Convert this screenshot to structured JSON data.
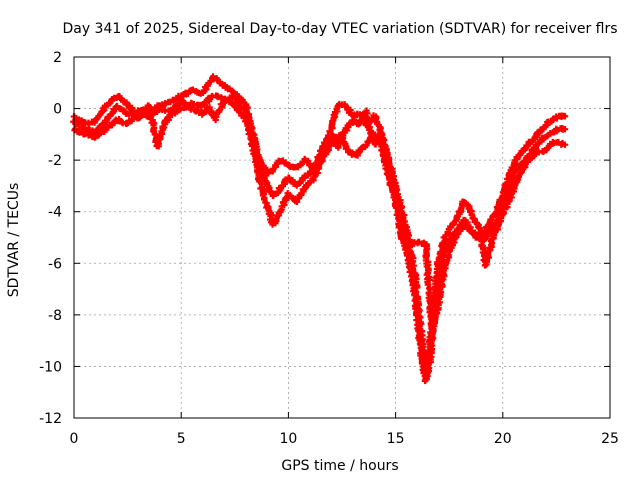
{
  "chart_data": {
    "type": "scatter",
    "title": "Day 341 of 2025, Sidereal Day-to-day VTEC variation (SDTVAR) for receiver flrs",
    "xlabel": "GPS time / hours",
    "ylabel": "SDTVAR / TECUs",
    "xlim": [
      0,
      25
    ],
    "ylim": [
      -12,
      2
    ],
    "xticks": [
      "0",
      "5",
      "10",
      "15",
      "20",
      "25"
    ],
    "yticks": [
      "2",
      "0",
      "-2",
      "-4",
      "-6",
      "-8",
      "-10",
      "-12"
    ],
    "grid": true,
    "marker": "plus",
    "marker_color": "#ff0000",
    "series": [
      {
        "points": [
          [
            0.0,
            -0.3
          ],
          [
            0.5,
            -0.6
          ],
          [
            1.0,
            -0.5
          ],
          [
            1.5,
            0.1
          ],
          [
            2.0,
            0.5
          ],
          [
            2.5,
            0.2
          ],
          [
            3.0,
            -0.4
          ],
          [
            3.5,
            -0.1
          ],
          [
            4.0,
            0.1
          ],
          [
            4.5,
            0.3
          ],
          [
            5.0,
            0.5
          ],
          [
            5.5,
            0.7
          ],
          [
            6.0,
            0.6
          ],
          [
            6.5,
            1.2
          ],
          [
            7.0,
            0.9
          ],
          [
            7.5,
            0.6
          ],
          [
            8.0,
            0.2
          ],
          [
            8.3,
            -0.8
          ],
          [
            8.6,
            -1.8
          ],
          [
            9.0,
            -2.5
          ],
          [
            9.3,
            -2.4
          ],
          [
            9.6,
            -2.0
          ],
          [
            10.0,
            -2.2
          ],
          [
            10.4,
            -2.3
          ],
          [
            10.8,
            -2.0
          ],
          [
            11.2,
            -2.3
          ],
          [
            11.6,
            -1.5
          ],
          [
            12.0,
            -0.8
          ],
          [
            12.3,
            0.1
          ],
          [
            12.6,
            0.2
          ],
          [
            13.0,
            -0.3
          ],
          [
            13.3,
            -0.2
          ],
          [
            13.7,
            -0.7
          ],
          [
            14.0,
            -0.3
          ],
          [
            14.3,
            -0.8
          ],
          [
            14.6,
            -1.8
          ],
          [
            15.0,
            -3.0
          ],
          [
            15.3,
            -4.0
          ],
          [
            15.6,
            -5.0
          ],
          [
            15.9,
            -6.5
          ],
          [
            16.2,
            -8.8
          ],
          [
            16.4,
            -10.2
          ],
          [
            16.6,
            -9.2
          ],
          [
            16.8,
            -7.5
          ],
          [
            17.0,
            -6.0
          ],
          [
            17.3,
            -5.0
          ],
          [
            17.6,
            -4.6
          ],
          [
            17.9,
            -4.2
          ],
          [
            18.2,
            -3.6
          ],
          [
            18.5,
            -4.0
          ],
          [
            18.8,
            -4.5
          ],
          [
            19.1,
            -4.9
          ],
          [
            19.4,
            -4.4
          ],
          [
            19.7,
            -4.0
          ],
          [
            20.0,
            -3.3
          ],
          [
            20.3,
            -2.6
          ],
          [
            20.6,
            -2.0
          ],
          [
            21.0,
            -1.6
          ],
          [
            21.4,
            -1.2
          ],
          [
            21.8,
            -0.8
          ],
          [
            22.2,
            -0.5
          ],
          [
            22.6,
            -0.3
          ],
          [
            22.9,
            -0.3
          ]
        ]
      },
      {
        "points": [
          [
            0.0,
            -0.8
          ],
          [
            0.5,
            -1.0
          ],
          [
            1.0,
            -1.1
          ],
          [
            1.5,
            -0.8
          ],
          [
            2.0,
            -0.4
          ],
          [
            2.5,
            -0.6
          ],
          [
            3.0,
            -0.2
          ],
          [
            3.5,
            0.1
          ],
          [
            3.9,
            -1.5
          ],
          [
            4.2,
            -0.6
          ],
          [
            4.6,
            -0.2
          ],
          [
            5.0,
            0.0
          ],
          [
            5.5,
            0.2
          ],
          [
            6.0,
            0.1
          ],
          [
            6.5,
            0.5
          ],
          [
            7.0,
            0.4
          ],
          [
            7.5,
            0.1
          ],
          [
            8.0,
            -0.4
          ],
          [
            8.3,
            -1.3
          ],
          [
            8.6,
            -2.6
          ],
          [
            9.0,
            -3.8
          ],
          [
            9.3,
            -4.5
          ],
          [
            9.6,
            -4.0
          ],
          [
            10.0,
            -3.3
          ],
          [
            10.4,
            -3.6
          ],
          [
            10.8,
            -3.0
          ],
          [
            11.2,
            -2.7
          ],
          [
            11.6,
            -1.9
          ],
          [
            12.0,
            -1.4
          ],
          [
            12.4,
            -1.0
          ],
          [
            12.8,
            -1.7
          ],
          [
            13.2,
            -1.8
          ],
          [
            13.6,
            -1.4
          ],
          [
            14.0,
            -1.0
          ],
          [
            14.3,
            -1.3
          ],
          [
            14.6,
            -2.4
          ],
          [
            15.0,
            -3.6
          ],
          [
            15.3,
            -5.0
          ],
          [
            15.6,
            -5.8
          ],
          [
            15.9,
            -7.2
          ],
          [
            16.2,
            -9.5
          ],
          [
            16.4,
            -10.6
          ],
          [
            16.6,
            -9.8
          ],
          [
            16.8,
            -8.2
          ],
          [
            17.0,
            -6.8
          ],
          [
            17.3,
            -5.6
          ],
          [
            17.6,
            -5.0
          ],
          [
            17.9,
            -4.7
          ],
          [
            18.2,
            -4.3
          ],
          [
            18.5,
            -4.7
          ],
          [
            18.8,
            -5.0
          ],
          [
            19.1,
            -5.1
          ],
          [
            19.4,
            -4.8
          ],
          [
            19.7,
            -4.4
          ],
          [
            20.0,
            -3.8
          ],
          [
            20.3,
            -3.1
          ],
          [
            20.6,
            -2.4
          ],
          [
            21.0,
            -2.0
          ],
          [
            21.4,
            -1.6
          ],
          [
            21.8,
            -1.2
          ],
          [
            22.2,
            -1.0
          ],
          [
            22.6,
            -0.8
          ],
          [
            22.9,
            -0.8
          ]
        ]
      },
      {
        "points": [
          [
            0.0,
            -0.5
          ],
          [
            0.5,
            -0.8
          ],
          [
            1.0,
            -0.9
          ],
          [
            1.5,
            -0.5
          ],
          [
            2.0,
            0.1
          ],
          [
            2.5,
            -0.2
          ],
          [
            3.0,
            -0.1
          ],
          [
            3.5,
            -0.3
          ],
          [
            4.0,
            0.0
          ],
          [
            4.5,
            -0.1
          ],
          [
            5.0,
            0.3
          ],
          [
            5.5,
            0.0
          ],
          [
            6.0,
            -0.2
          ],
          [
            6.3,
            0.0
          ],
          [
            6.6,
            -0.4
          ],
          [
            7.0,
            0.3
          ],
          [
            7.5,
            0.5
          ],
          [
            8.0,
            -0.1
          ],
          [
            8.3,
            -1.0
          ],
          [
            8.6,
            -2.1
          ],
          [
            9.0,
            -3.0
          ],
          [
            9.3,
            -3.4
          ],
          [
            9.6,
            -3.1
          ],
          [
            10.0,
            -2.7
          ],
          [
            10.4,
            -3.0
          ],
          [
            10.8,
            -2.6
          ],
          [
            11.2,
            -2.4
          ],
          [
            11.6,
            -1.6
          ],
          [
            12.0,
            -1.0
          ],
          [
            12.3,
            -1.5
          ],
          [
            12.6,
            -0.9
          ],
          [
            13.0,
            -0.5
          ],
          [
            13.3,
            -0.6
          ],
          [
            13.6,
            -0.1
          ],
          [
            14.0,
            -1.4
          ],
          [
            14.3,
            -1.0
          ],
          [
            14.6,
            -2.0
          ],
          [
            15.0,
            -3.3
          ],
          [
            15.3,
            -4.6
          ],
          [
            15.6,
            -5.2
          ],
          [
            16.0,
            -5.2
          ],
          [
            16.4,
            -5.2
          ],
          [
            16.7,
            -8.6
          ],
          [
            17.0,
            -7.6
          ],
          [
            17.3,
            -6.1
          ],
          [
            17.6,
            -5.4
          ],
          [
            17.9,
            -4.8
          ],
          [
            18.2,
            -4.5
          ],
          [
            18.6,
            -4.8
          ],
          [
            19.0,
            -5.0
          ],
          [
            19.2,
            -6.1
          ],
          [
            19.5,
            -5.1
          ],
          [
            19.8,
            -4.5
          ],
          [
            20.1,
            -3.9
          ],
          [
            20.5,
            -3.2
          ],
          [
            20.8,
            -2.5
          ],
          [
            21.2,
            -2.0
          ],
          [
            21.6,
            -1.7
          ],
          [
            22.0,
            -1.6
          ],
          [
            22.4,
            -1.3
          ],
          [
            22.9,
            -1.4
          ]
        ]
      }
    ]
  }
}
